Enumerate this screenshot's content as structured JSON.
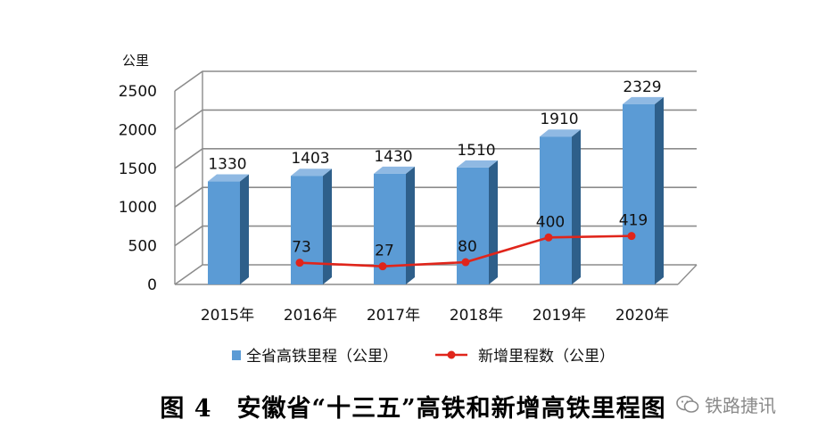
{
  "figure_caption": "图 4　安徽省“十三五”高铁和新增高铁里程图",
  "watermark": "铁路捷讯",
  "colors": {
    "bar_face": "#5b9bd5",
    "bar_side": "#2e5f8a",
    "bar_top": "#8fb9e3",
    "line": "#e0251b",
    "grid": "#8c8c8c",
    "axis_text": "#111111"
  },
  "chart_data": {
    "type": "bar",
    "unit_label": "公里",
    "categories": [
      "2015年",
      "2016年",
      "2017年",
      "2018年",
      "2019年",
      "2020年"
    ],
    "ylim": [
      0,
      2500
    ],
    "yticks": [
      0,
      500,
      1000,
      1500,
      2000,
      2500
    ],
    "grid": true,
    "legend_position": "bottom",
    "series": [
      {
        "name": "全省高铁里程（公里）",
        "type": "bar",
        "values": [
          1330,
          1403,
          1430,
          1510,
          1910,
          2329
        ],
        "labels": [
          "1330",
          "1403",
          "1430",
          "1510",
          "1910",
          "2329"
        ]
      },
      {
        "name": "新增里程数（公里）",
        "type": "line",
        "x": [
          "2016年",
          "2017年",
          "2018年",
          "2019年",
          "2020年"
        ],
        "values": [
          73,
          27,
          80,
          400,
          419
        ],
        "labels": [
          "73",
          "27",
          "80",
          "400",
          "419"
        ]
      }
    ]
  }
}
